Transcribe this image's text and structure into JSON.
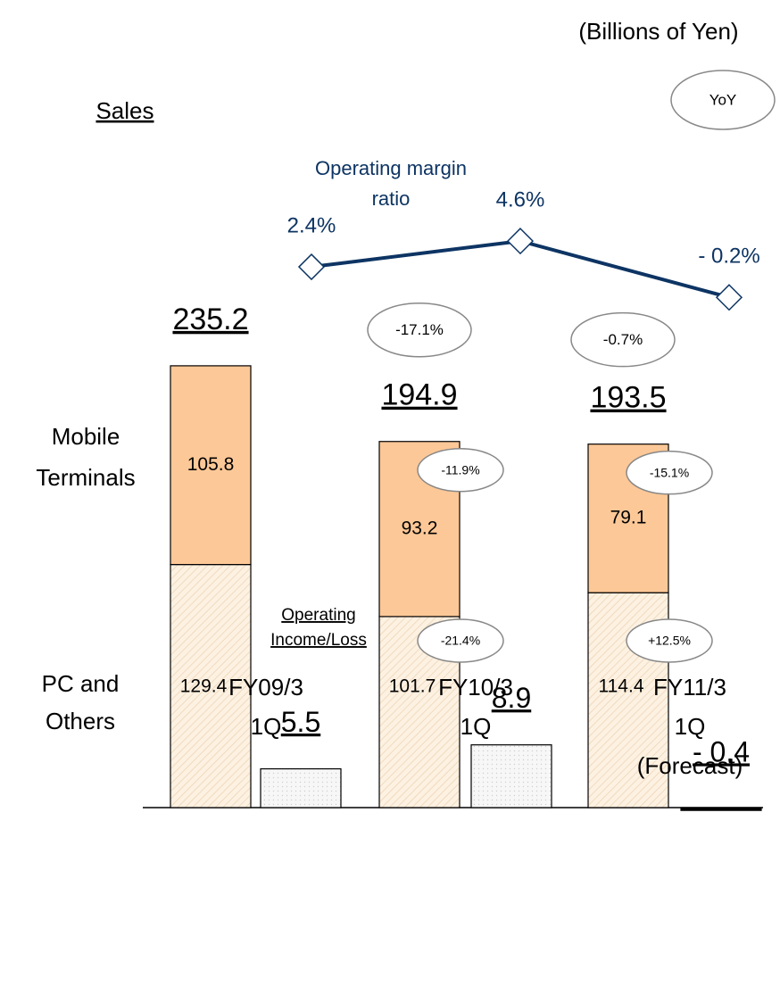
{
  "chart_data": {
    "type": "bar",
    "unit_label": "(Billions of Yen)",
    "title": "Sales",
    "yoy_legend": "YoY",
    "categories": [
      [
        "FY09/3",
        "1Q"
      ],
      [
        "FY10/3",
        "1Q"
      ],
      [
        "FY11/3",
        "1Q",
        "(Forecast)"
      ]
    ],
    "series": [
      {
        "name": [
          "PC and",
          "Others"
        ],
        "color": "#fdf1e2",
        "values": [
          129.4,
          101.7,
          114.4
        ],
        "yoy": [
          null,
          -21.4,
          12.5
        ],
        "yoy_labels": [
          null,
          "-21.4%",
          "+12.5%"
        ]
      },
      {
        "name": [
          "Mobile",
          "Terminals"
        ],
        "color": "#fdc897",
        "values": [
          105.8,
          93.2,
          79.1
        ],
        "yoy": [
          null,
          -11.9,
          -15.1
        ],
        "yoy_labels": [
          null,
          "-11.9%",
          "-15.1%"
        ]
      }
    ],
    "totals": {
      "values": [
        235.2,
        194.9,
        193.5
      ],
      "yoy": [
        null,
        -17.1,
        -0.7
      ],
      "yoy_labels": [
        null,
        "-17.1%",
        "-0.7%"
      ]
    },
    "operating_income": {
      "name": [
        "Operating",
        "Income/Loss"
      ],
      "color": "#f2f2f2",
      "values": [
        5.5,
        8.9,
        -0.4
      ],
      "value_labels": [
        "5.5",
        "8.9",
        "- 0.4"
      ]
    },
    "margin": {
      "name": [
        "Operating margin",
        "ratio"
      ],
      "color": "#0d3463",
      "values": [
        2.4,
        4.6,
        -0.2
      ],
      "value_labels": [
        "2.4%",
        "4.6%",
        "- 0.2%"
      ]
    }
  }
}
